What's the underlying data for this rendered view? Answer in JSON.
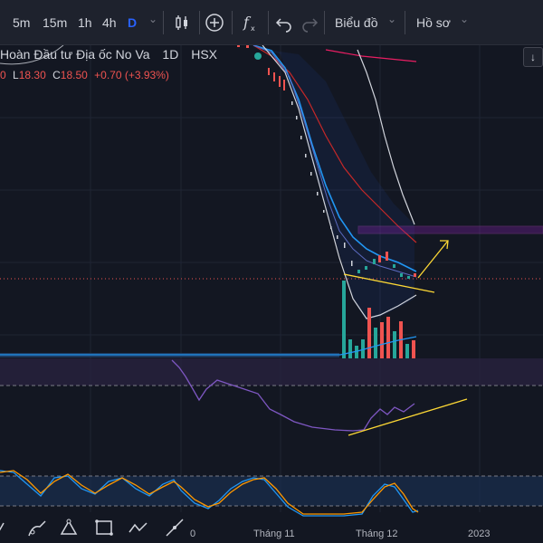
{
  "toolbar": {
    "intervals": [
      "5m",
      "15m",
      "1h",
      "4h",
      "D"
    ],
    "active_interval": "D",
    "chart_type_icon": "candles-icon",
    "indicator_icon": "plus-circle-icon",
    "formula_icon": "fx-icon",
    "undo_icon": "undo-icon",
    "redo_icon": "redo-icon",
    "charts_menu": "Biểu đồ",
    "profile_menu": "Hồ sơ"
  },
  "legend": {
    "symbol_name": "Hoàn Đầu tư Địa ốc No Va",
    "interval": "1D",
    "exchange": "HSX",
    "ohlc_prefix": "0",
    "low_label": "L",
    "low_value": "18.30",
    "close_label": "C",
    "close_value": "18.50",
    "change": "+0.70 (+3.93%)",
    "collapse_icon": "arrow-down-icon"
  },
  "x_axis": {
    "labels": [
      "0",
      "Tháng 11",
      "Tháng 12",
      "2023"
    ]
  },
  "bottom_tools": [
    "ruler-icon",
    "brush-icon",
    "curve-icon",
    "rectangle-icon",
    "polyline-icon",
    "line-tool-icon"
  ],
  "colors": {
    "background": "#131722",
    "toolbar": "#1e222d",
    "accent": "#2962ff",
    "up": "#26a69a",
    "down": "#ef5350",
    "ma_blue": "#2196f3",
    "ma_red": "#e53935",
    "band_white": "#d1d4dc",
    "rsi": "#7e57c2",
    "trend_yellow": "#fdd835",
    "resistance": "#9c27b0",
    "stoch_blue": "#2196f3",
    "stoch_orange": "#ff9800"
  }
}
